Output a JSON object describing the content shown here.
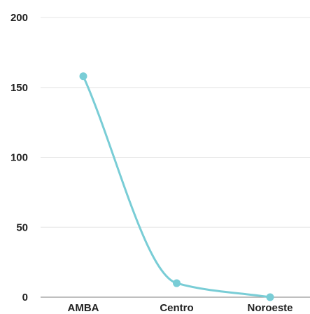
{
  "chart_data": {
    "type": "line",
    "title": "",
    "xlabel": "",
    "ylabel": "",
    "categories": [
      "AMBA",
      "Centro",
      "Noroeste"
    ],
    "series": [
      {
        "values": [
          158,
          10,
          0
        ]
      }
    ],
    "ylim": [
      0,
      200
    ],
    "yticks": [
      0,
      50,
      100,
      150,
      200
    ],
    "grid": true,
    "curve": "smooth",
    "colors": {
      "line": "#79cdd6",
      "marker": "#79cdd6",
      "grid": "#e6e6e6",
      "text": "#222222"
    }
  }
}
